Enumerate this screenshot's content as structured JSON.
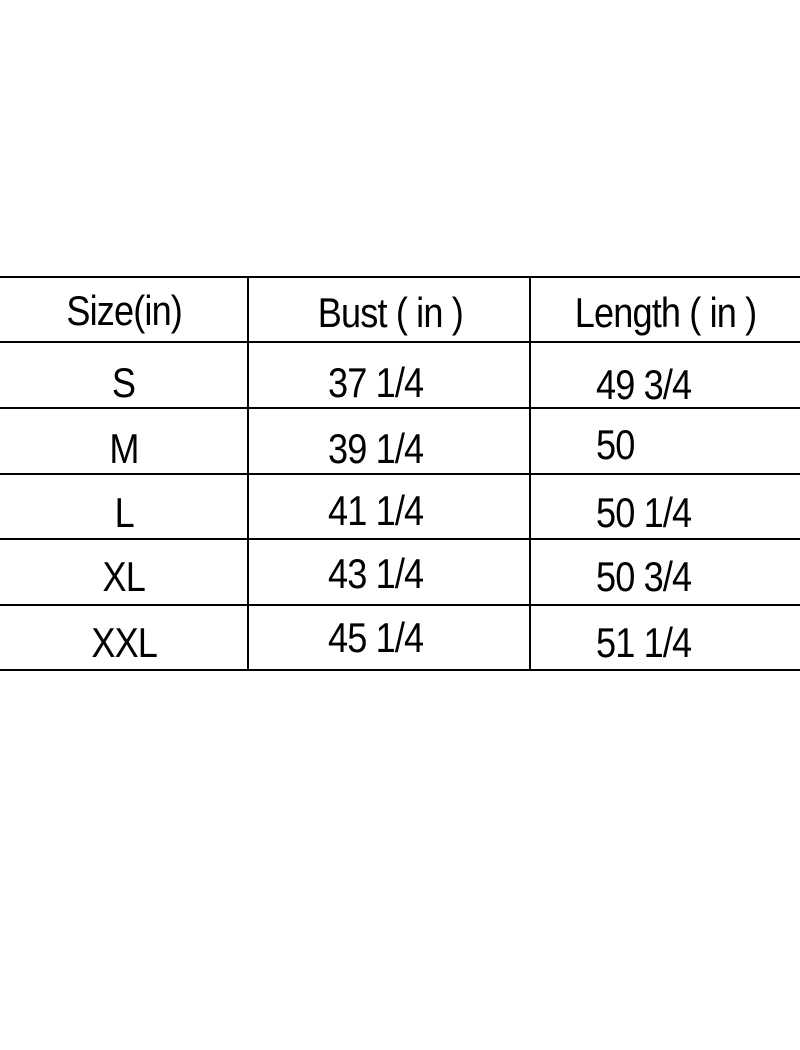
{
  "table": {
    "headers": [
      "Size(in)",
      "Bust ( in )",
      "Length ( in )"
    ],
    "rows": [
      [
        "S",
        "37 1/4",
        "49 3/4"
      ],
      [
        "M",
        "39 1/4",
        "50"
      ],
      [
        "L",
        "41 1/4",
        "50 1/4"
      ],
      [
        "XL",
        "43 1/4",
        "50 3/4"
      ],
      [
        "XXL",
        "45 1/4",
        "51 1/4"
      ]
    ]
  }
}
